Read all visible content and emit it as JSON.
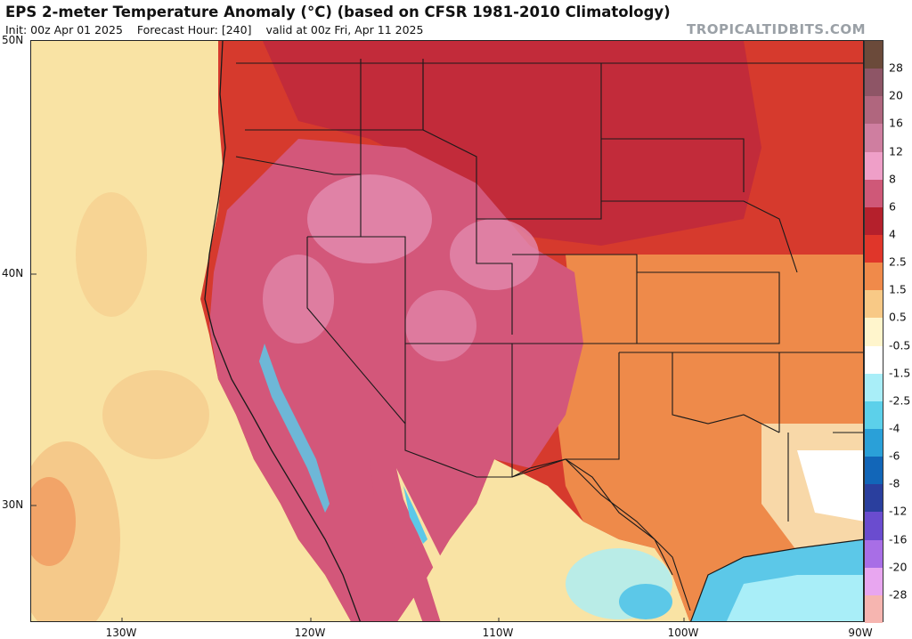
{
  "header": {
    "title": "EPS 2-meter Temperature Anomaly (°C) (based on CFSR 1981-2010 Climatology)",
    "init": "Init: 00z Apr 01 2025",
    "forecast_hour": "Forecast Hour: [240]",
    "valid": "valid at 00z Fri, Apr 11 2025",
    "brand": "TROPICALTIDBITS.COM"
  },
  "map": {
    "lat_labels": [
      "50N",
      "40N",
      "30N"
    ],
    "lon_labels": [
      "130W",
      "120W",
      "110W",
      "100W",
      "90W"
    ],
    "colors": {
      "ocean_warm": "#f9e3a4",
      "ocean_mild": "#f5c98a",
      "ocean_orange": "#f2a468",
      "west_pink": "#d3577a",
      "west_light_pink": "#e289ae",
      "rockies_red": "#c22b3a",
      "plains_red": "#d63a2d",
      "south_orange": "#ee8a4a",
      "gulf_coast_light": "#f8d8a8",
      "cool_blue": "#5cc8e8",
      "neutral": "#ffffff"
    }
  },
  "colorbar": {
    "labels": [
      "28",
      "20",
      "16",
      "12",
      "8",
      "6",
      "4",
      "2.5",
      "1.5",
      "0.5",
      "-0.5",
      "-1.5",
      "-2.5",
      "-4",
      "-6",
      "-8",
      "-12",
      "-16",
      "-20",
      "-28"
    ],
    "colors": [
      "#6b4a3a",
      "#8e5566",
      "#b0667e",
      "#cf7ea0",
      "#ef9fc8",
      "#cf5878",
      "#b5202c",
      "#e0362a",
      "#f08a4a",
      "#f8c986",
      "#fff5cc",
      "#ffffff",
      "#a9eef8",
      "#5cd0ea",
      "#2aa0d8",
      "#1266b8",
      "#2a3f9e",
      "#6a4ccf",
      "#a86ee6",
      "#e8a6f0",
      "#f6b5b0"
    ]
  }
}
